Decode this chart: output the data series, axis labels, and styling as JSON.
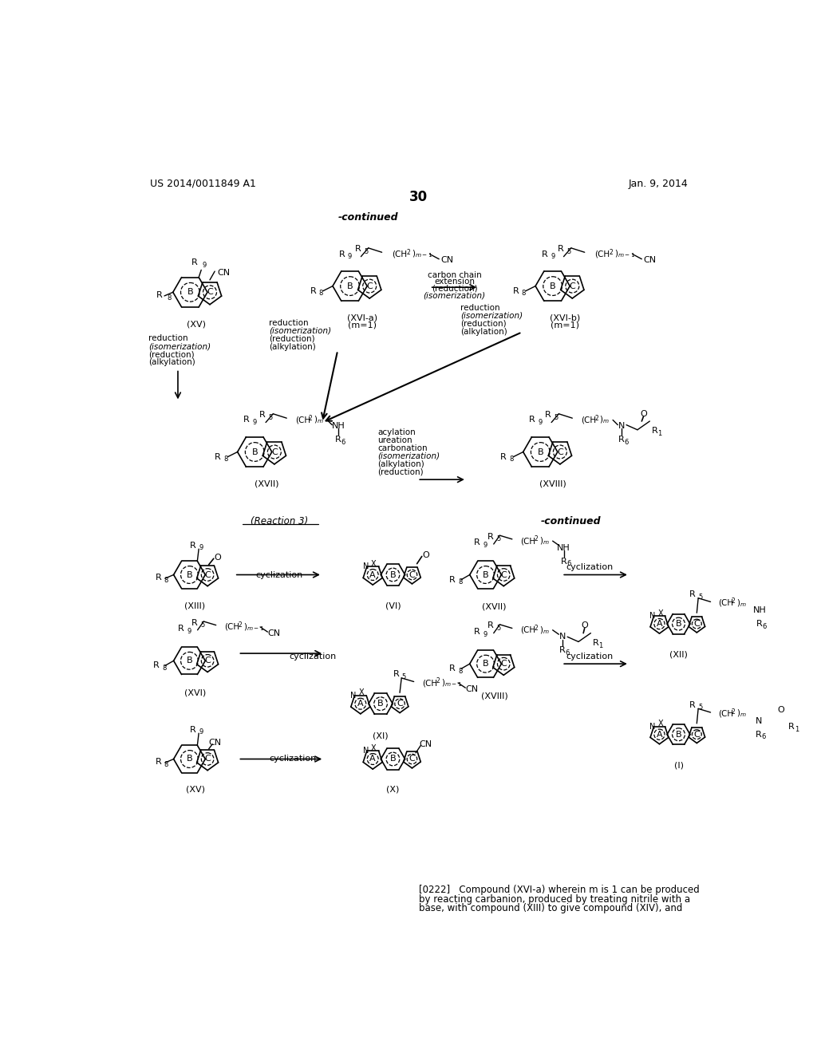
{
  "page_number": "30",
  "header_left": "US 2014/0011849 A1",
  "header_right": "Jan. 9, 2014",
  "background_color": "#ffffff",
  "text_color": "#000000",
  "footer_text_1": "[0222]   Compound (XVI-a) wherein m is 1 can be produced",
  "footer_text_2": "by reacting carbanion, produced by treating nitrile with a",
  "footer_text_3": "base, with compound (XIII) to give compound (XIV), and"
}
